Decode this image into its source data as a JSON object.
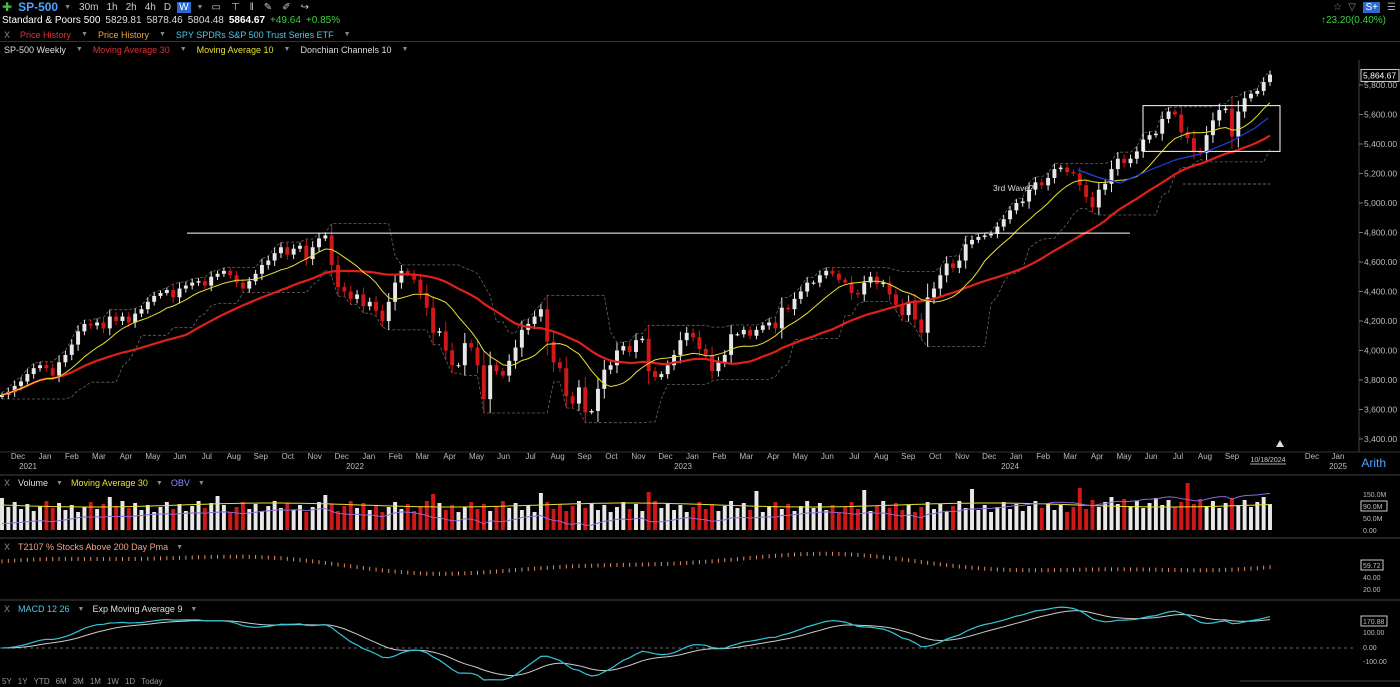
{
  "toolbar": {
    "symbol": "SP-500",
    "buttons": [
      "30m",
      "1h",
      "2h",
      "4h",
      "D",
      "W"
    ],
    "active": "W"
  },
  "quote": {
    "name": "Standard & Poors 500",
    "open": "5829.81",
    "high": "5878.46",
    "low": "5804.48",
    "last": "5864.67",
    "change": "+49.64",
    "change_pct": "+0.85%",
    "right_change": "23.20(0.40%)"
  },
  "overlays": {
    "close": "X",
    "items": [
      "Price History",
      "Price History",
      "SPY SPDRs S&P 500 Trust Series ETF"
    ]
  },
  "studies": {
    "items": [
      "SP-500 Weekly",
      "Moving Average 30",
      "Moving Average 10",
      "Donchian Channels 10"
    ]
  },
  "volume_panel": {
    "close": "X",
    "items": [
      "Volume",
      "Moving Average 30",
      "OBV"
    ],
    "axis": [
      "150.0M",
      "90.0M",
      "50.0M",
      "0.00"
    ]
  },
  "t2107_panel": {
    "close": "X",
    "title": "T2107 % Stocks Above 200 Day Pma",
    "axis": [
      "59.72",
      "40.00",
      "20.00"
    ]
  },
  "macd_panel": {
    "close": "X",
    "items": [
      "MACD 12 26",
      "Exp Moving Average 9"
    ],
    "axis": [
      "170.88",
      "100.00",
      "0.00",
      "-100.00"
    ]
  },
  "ranges": [
    "5Y",
    "1Y",
    "YTD",
    "6M",
    "3M",
    "1M",
    "1W",
    "1D",
    "Today"
  ],
  "scale_mode": "Arith",
  "chart_data": {
    "type": "candlestick",
    "title": "SP-500 Weekly",
    "ylim": [
      3400,
      5950
    ],
    "yticks": [
      "3,400.00",
      "3,600.00",
      "3,800.00",
      "4,000.00",
      "4,200.00",
      "4,400.00",
      "4,600.00",
      "4,800.00",
      "5,000.00",
      "5,200.00",
      "5,400.00",
      "5,600.00",
      "5,800.00"
    ],
    "last_price_label": "5,864.67",
    "x_month_labels": [
      "Dec",
      "Jan",
      "Feb",
      "Mar",
      "Apr",
      "May",
      "Jun",
      "Jul",
      "Aug",
      "Sep",
      "Oct",
      "Nov",
      "Dec",
      "Jan",
      "Feb",
      "Mar",
      "Apr",
      "May",
      "Jun",
      "Jul",
      "Aug",
      "Sep",
      "Oct",
      "Nov",
      "Dec",
      "Jan",
      "Feb",
      "Mar",
      "Apr",
      "May",
      "Jun",
      "Jul",
      "Aug",
      "Sep",
      "Oct",
      "Nov",
      "Dec",
      "Jan",
      "Feb",
      "Mar",
      "Apr",
      "May",
      "Jun",
      "Jul",
      "Aug",
      "Sep",
      "Dec",
      "Jan"
    ],
    "x_year_labels": [
      "2021",
      "2022",
      "2023",
      "2024",
      "2025"
    ],
    "current_date_label": "10/18/2024",
    "weekly_close": [
      3700,
      3720,
      3760,
      3790,
      3840,
      3880,
      3900,
      3880,
      3830,
      3920,
      3970,
      4040,
      4130,
      4180,
      4170,
      4190,
      4150,
      4230,
      4200,
      4230,
      4190,
      4250,
      4280,
      4330,
      4370,
      4390,
      4410,
      4360,
      4420,
      4440,
      4460,
      4470,
      4440,
      4500,
      4520,
      4540,
      4510,
      4460,
      4420,
      4470,
      4520,
      4580,
      4610,
      4660,
      4700,
      4650,
      4690,
      4710,
      4620,
      4700,
      4760,
      4780,
      4580,
      4430,
      4400,
      4350,
      4380,
      4300,
      4330,
      4270,
      4200,
      4330,
      4460,
      4540,
      4520,
      4480,
      4390,
      4290,
      4120,
      4130,
      4000,
      3900,
      3900,
      4050,
      4020,
      3900,
      3670,
      3900,
      3860,
      3830,
      3930,
      4020,
      4140,
      4180,
      4230,
      4280,
      4060,
      3920,
      3880,
      3690,
      3640,
      3750,
      3580,
      3590,
      3740,
      3870,
      3900,
      4000,
      4030,
      3990,
      4070,
      4080,
      3860,
      3820,
      3840,
      3900,
      3970,
      4070,
      4120,
      4090,
      4010,
      3970,
      3860,
      3920,
      3970,
      4110,
      4110,
      4140,
      4100,
      4140,
      4170,
      4190,
      4150,
      4290,
      4280,
      4350,
      4400,
      4460,
      4460,
      4510,
      4540,
      4520,
      4480,
      4460,
      4390,
      4380,
      4460,
      4500,
      4450,
      4460,
      4380,
      4310,
      4240,
      4330,
      4210,
      4120,
      4360,
      4420,
      4510,
      4590,
      4560,
      4610,
      4720,
      4750,
      4770,
      4780,
      4790,
      4840,
      4890,
      4950,
      5000,
      5010,
      5090,
      5140,
      5120,
      5170,
      5230,
      5240,
      5210,
      5200,
      5120,
      5040,
      4970,
      5090,
      5130,
      5230,
      5300,
      5270,
      5300,
      5350,
      5430,
      5460,
      5470,
      5570,
      5620,
      5600,
      5480,
      5440,
      5350,
      5340,
      5460,
      5560,
      5630,
      5640,
      5450,
      5620,
      5710,
      5740,
      5760,
      5820,
      5870
    ],
    "annotations": {
      "wave_label": "3rd Wave?",
      "resistance_level": 4796,
      "box": {
        "price_top": 5660,
        "price_bottom": 5350
      }
    },
    "series": [
      {
        "name": "Moving Average 30",
        "color": "#e0201a"
      },
      {
        "name": "Moving Average 10",
        "color": "#e8e030"
      },
      {
        "name": "Donchian Channels 10",
        "color": "#888888"
      }
    ]
  },
  "colors": {
    "up": "#e8e8e8",
    "down": "#d01818",
    "ma30": "#e0201a",
    "ma10": "#e8e030",
    "accent": "#4fa3ff"
  }
}
